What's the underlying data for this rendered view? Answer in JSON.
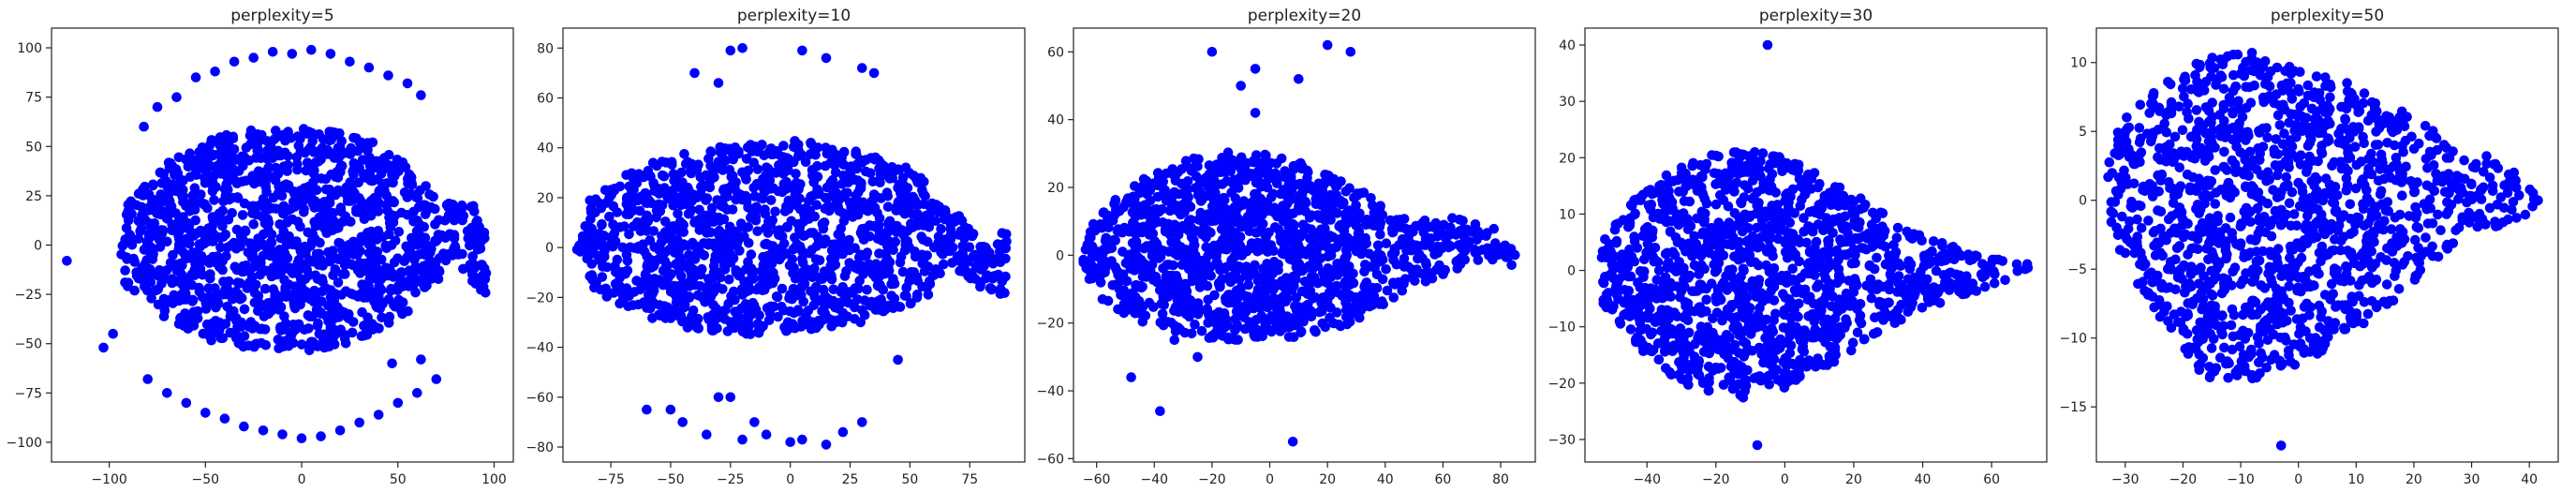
{
  "figure": {
    "panels_description": "Five t-SNE scatter plots"
  },
  "colors": {
    "points": "#0000ff",
    "axes": "#222222",
    "background": "#ffffff"
  },
  "chart_data": [
    {
      "type": "scatter",
      "title": "perplexity=5",
      "xlabel": "",
      "ylabel": "",
      "xlim": [
        -130,
        110
      ],
      "ylim": [
        -110,
        110
      ],
      "xticks": [
        -100,
        -50,
        0,
        50,
        100
      ],
      "yticks": [
        -100,
        -75,
        -50,
        -25,
        0,
        25,
        50,
        75,
        100
      ],
      "grid": false,
      "shape": {
        "core": [
          [
            -95,
            -5
          ],
          [
            -90,
            22
          ],
          [
            -70,
            42
          ],
          [
            -45,
            55
          ],
          [
            -15,
            60
          ],
          [
            15,
            58
          ],
          [
            45,
            50
          ],
          [
            62,
            32
          ],
          [
            75,
            22
          ],
          [
            88,
            24
          ],
          [
            95,
            10
          ],
          [
            96,
            -15
          ],
          [
            98,
            -30
          ],
          [
            88,
            -20
          ],
          [
            80,
            -5
          ],
          [
            70,
            -20
          ],
          [
            50,
            -40
          ],
          [
            20,
            -52
          ],
          [
            -15,
            -55
          ],
          [
            -50,
            -48
          ],
          [
            -75,
            -35
          ],
          [
            -92,
            -20
          ]
        ],
        "outliers": [
          [
            -122,
            -8
          ],
          [
            -103,
            -52
          ],
          [
            -98,
            -45
          ],
          [
            -82,
            60
          ],
          [
            -75,
            70
          ],
          [
            -65,
            75
          ],
          [
            -55,
            85
          ],
          [
            -45,
            88
          ],
          [
            -35,
            93
          ],
          [
            -25,
            95
          ],
          [
            -15,
            98
          ],
          [
            -5,
            97
          ],
          [
            5,
            99
          ],
          [
            15,
            97
          ],
          [
            25,
            93
          ],
          [
            35,
            90
          ],
          [
            45,
            86
          ],
          [
            55,
            82
          ],
          [
            62,
            76
          ],
          [
            -80,
            -68
          ],
          [
            -70,
            -75
          ],
          [
            -60,
            -80
          ],
          [
            -50,
            -85
          ],
          [
            -40,
            -88
          ],
          [
            -30,
            -92
          ],
          [
            -20,
            -94
          ],
          [
            -10,
            -96
          ],
          [
            0,
            -98
          ],
          [
            10,
            -97
          ],
          [
            20,
            -94
          ],
          [
            30,
            -90
          ],
          [
            40,
            -86
          ],
          [
            50,
            -80
          ],
          [
            60,
            -75
          ],
          [
            70,
            -68
          ],
          [
            47,
            -60
          ],
          [
            62,
            -58
          ]
        ]
      }
    },
    {
      "type": "scatter",
      "title": "perplexity=10",
      "xlabel": "",
      "ylabel": "",
      "xlim": [
        -95,
        98
      ],
      "ylim": [
        -86,
        88
      ],
      "xticks": [
        -75,
        -50,
        -25,
        0,
        25,
        50,
        75
      ],
      "yticks": [
        -80,
        -60,
        -40,
        -20,
        0,
        20,
        40,
        60,
        80
      ],
      "grid": false,
      "shape": {
        "core": [
          [
            -90,
            0
          ],
          [
            -85,
            18
          ],
          [
            -70,
            30
          ],
          [
            -45,
            38
          ],
          [
            -20,
            42
          ],
          [
            5,
            43
          ],
          [
            30,
            38
          ],
          [
            55,
            30
          ],
          [
            72,
            12
          ],
          [
            80,
            2
          ],
          [
            84,
            -2
          ],
          [
            90,
            10
          ],
          [
            92,
            -8
          ],
          [
            92,
            -20
          ],
          [
            85,
            -18
          ],
          [
            76,
            -15
          ],
          [
            68,
            -8
          ],
          [
            55,
            -22
          ],
          [
            30,
            -30
          ],
          [
            0,
            -35
          ],
          [
            -30,
            -35
          ],
          [
            -55,
            -30
          ],
          [
            -80,
            -20
          ]
        ],
        "outliers": [
          [
            -25,
            79
          ],
          [
            -20,
            80
          ],
          [
            5,
            79
          ],
          [
            15,
            76
          ],
          [
            30,
            72
          ],
          [
            35,
            70
          ],
          [
            -40,
            70
          ],
          [
            -30,
            66
          ],
          [
            45,
            -45
          ],
          [
            -60,
            -65
          ],
          [
            -45,
            -70
          ],
          [
            -30,
            -60
          ],
          [
            -25,
            -60
          ],
          [
            -15,
            -70
          ],
          [
            -10,
            -75
          ],
          [
            0,
            -78
          ],
          [
            5,
            -77
          ],
          [
            15,
            -79
          ],
          [
            22,
            -74
          ],
          [
            30,
            -70
          ],
          [
            -50,
            -65
          ],
          [
            -35,
            -75
          ],
          [
            -20,
            -77
          ]
        ]
      }
    },
    {
      "type": "scatter",
      "title": "perplexity=20",
      "xlabel": "",
      "ylabel": "",
      "xlim": [
        -68,
        92
      ],
      "ylim": [
        -61,
        67
      ],
      "xticks": [
        -60,
        -40,
        -20,
        0,
        20,
        40,
        60,
        80
      ],
      "yticks": [
        -60,
        -40,
        -20,
        0,
        20,
        40,
        60
      ],
      "grid": false,
      "shape": {
        "core": [
          [
            -65,
            -2
          ],
          [
            -62,
            10
          ],
          [
            -50,
            20
          ],
          [
            -30,
            28
          ],
          [
            -10,
            31
          ],
          [
            10,
            28
          ],
          [
            30,
            20
          ],
          [
            48,
            10
          ],
          [
            60,
            12
          ],
          [
            75,
            10
          ],
          [
            85,
            2
          ],
          [
            87,
            -4
          ],
          [
            80,
            -2
          ],
          [
            65,
            -4
          ],
          [
            48,
            -10
          ],
          [
            30,
            -20
          ],
          [
            5,
            -25
          ],
          [
            -20,
            -25
          ],
          [
            -45,
            -20
          ],
          [
            -60,
            -12
          ]
        ],
        "outliers": [
          [
            -20,
            60
          ],
          [
            -10,
            50
          ],
          [
            -5,
            55
          ],
          [
            -5,
            42
          ],
          [
            10,
            52
          ],
          [
            20,
            62
          ],
          [
            28,
            60
          ],
          [
            -38,
            -46
          ],
          [
            -48,
            -36
          ],
          [
            -33,
            -25
          ],
          [
            -25,
            -30
          ],
          [
            8,
            -55
          ]
        ]
      }
    },
    {
      "type": "scatter",
      "title": "perplexity=30",
      "xlabel": "",
      "ylabel": "",
      "xlim": [
        -58,
        76
      ],
      "ylim": [
        -34,
        43
      ],
      "xticks": [
        -40,
        -20,
        0,
        20,
        40,
        60
      ],
      "yticks": [
        -30,
        -20,
        -10,
        0,
        10,
        20,
        30,
        40
      ],
      "grid": false,
      "shape": {
        "core": [
          [
            -55,
            0
          ],
          [
            -52,
            6
          ],
          [
            -45,
            12
          ],
          [
            -35,
            17
          ],
          [
            -20,
            21
          ],
          [
            -5,
            21
          ],
          [
            10,
            18
          ],
          [
            25,
            12
          ],
          [
            40,
            6
          ],
          [
            55,
            3
          ],
          [
            65,
            2
          ],
          [
            72,
            1
          ],
          [
            70,
            -1
          ],
          [
            60,
            -3
          ],
          [
            45,
            -6
          ],
          [
            30,
            -10
          ],
          [
            15,
            -16
          ],
          [
            0,
            -21
          ],
          [
            -15,
            -23
          ],
          [
            -30,
            -20
          ],
          [
            -45,
            -13
          ],
          [
            -53,
            -6
          ]
        ],
        "outliers": [
          [
            -5,
            40
          ],
          [
            -8,
            -31
          ]
        ]
      }
    },
    {
      "type": "scatter",
      "title": "perplexity=50",
      "xlabel": "",
      "ylabel": "",
      "xlim": [
        -35,
        45
      ],
      "ylim": [
        -19,
        12.5
      ],
      "xticks": [
        -30,
        -20,
        -10,
        0,
        10,
        20,
        30,
        40
      ],
      "yticks": [
        -15,
        -10,
        -5,
        0,
        5,
        10
      ],
      "grid": false,
      "shape": {
        "core": [
          [
            -33,
            4
          ],
          [
            -30,
            6
          ],
          [
            -25,
            8
          ],
          [
            -18,
            10
          ],
          [
            -10,
            11
          ],
          [
            -3,
            10
          ],
          [
            5,
            9
          ],
          [
            12,
            8
          ],
          [
            20,
            6
          ],
          [
            28,
            4
          ],
          [
            35,
            3
          ],
          [
            40,
            1
          ],
          [
            42,
            0
          ],
          [
            40,
            -1
          ],
          [
            34,
            -2
          ],
          [
            28,
            -3
          ],
          [
            22,
            -5
          ],
          [
            15,
            -8
          ],
          [
            8,
            -10
          ],
          [
            0,
            -12
          ],
          [
            -8,
            -13
          ],
          [
            -16,
            -13
          ],
          [
            -22,
            -10
          ],
          [
            -28,
            -6
          ],
          [
            -32,
            -3
          ],
          [
            -33,
            0
          ]
        ],
        "outliers": [
          [
            -3,
            -17.8
          ]
        ]
      }
    }
  ]
}
